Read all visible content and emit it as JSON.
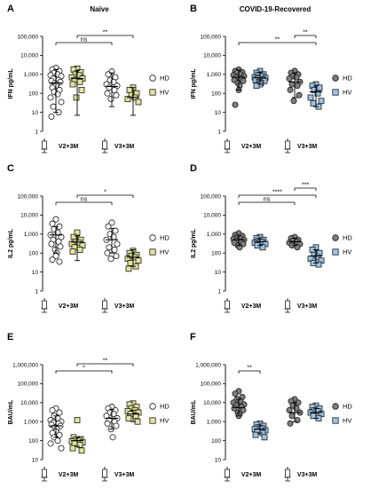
{
  "column_titles": {
    "left": "Naïve",
    "right": "COVID-19-Recovered"
  },
  "legend": {
    "hd": "HD",
    "hv": "HV"
  },
  "colors": {
    "naive_hd_fill": "#ffffff",
    "naive_hv_fill": "#e3e49a",
    "rec_hd_fill": "#7f7f7f",
    "rec_hv_fill": "#9cc3e6",
    "stroke": "#1a1a1a"
  },
  "icon_names": [
    "syringe-icon"
  ],
  "chart_data": [
    {
      "panel": "A",
      "type": "scatter",
      "xlabel": "",
      "ylabel": "IFN pg/mL",
      "log_y": true,
      "ylim": [
        1,
        100000
      ],
      "tick_labels": [
        "1",
        "10",
        "100",
        "1,000",
        "10,000",
        "100,000"
      ],
      "categories": [
        "V2+3M",
        "V3+3M"
      ],
      "series": [
        {
          "group": "HD",
          "fill_key": "naive_hd_fill",
          "shape": "circle",
          "values_by_category": [
            [
              2200,
              1800,
              1500,
              1200,
              1000,
              900,
              800,
              600,
              500,
              450,
              400,
              350,
              300,
              250,
              200,
              150,
              120,
              90,
              60,
              35,
              20,
              10,
              6
            ],
            [
              1400,
              1000,
              700,
              500,
              400,
              300,
              250,
              200,
              150,
              100,
              80,
              50
            ]
          ],
          "mean": [
            350,
            230
          ],
          "sd_low": [
            10,
            20
          ],
          "sd_high": [
            1800,
            1200
          ]
        },
        {
          "group": "HV",
          "fill_key": "naive_hv_fill",
          "shape": "square",
          "values_by_category": [
            [
              2000,
              1800,
              1300,
              1000,
              900,
              700,
              600,
              500,
              400,
              300,
              150,
              60
            ],
            [
              200,
              150,
              100,
              80,
              60,
              50,
              35
            ]
          ],
          "mean": [
            600,
            60
          ],
          "sd_low": [
            7,
            7
          ],
          "sd_high": [
            1600,
            200
          ]
        }
      ],
      "significance": [
        {
          "label": "ns",
          "from": "HD V2+3M",
          "to": "HD V3+3M"
        },
        {
          "label": "**",
          "from": "HV V2+3M",
          "to": "HV V3+3M"
        }
      ]
    },
    {
      "panel": "B",
      "type": "scatter",
      "xlabel": "",
      "ylabel": "IFN pg/mL",
      "log_y": true,
      "ylim": [
        1,
        100000
      ],
      "tick_labels": [
        "1",
        "10",
        "100",
        "1,000",
        "10,000",
        "100,000"
      ],
      "categories": [
        "V2+3M",
        "V3+3M"
      ],
      "series": [
        {
          "group": "HD",
          "fill_key": "rec_hd_fill",
          "shape": "circle",
          "values_by_category": [
            [
              1800,
              1500,
              1300,
              1200,
              1000,
              900,
              800,
              700,
              600,
              500,
              450,
              350,
              250,
              150,
              25
            ],
            [
              1500,
              1200,
              1000,
              800,
              700,
              600,
              400,
              300,
              250,
              150,
              80,
              40
            ]
          ],
          "mean": [
            700,
            400
          ],
          "sd_low": [
            150,
            60
          ],
          "sd_high": [
            1700,
            1200
          ]
        },
        {
          "group": "HV",
          "fill_key": "rec_hv_fill",
          "shape": "square",
          "values_by_category": [
            [
              1500,
              1200,
              1000,
              900,
              800,
              700,
              650,
              600,
              550,
              500,
              450,
              400,
              350,
              300,
              250
            ],
            [
              300,
              250,
              200,
              150,
              100,
              60,
              40,
              30,
              20
            ]
          ],
          "mean": [
            650,
            120
          ],
          "sd_low": [
            300,
            20
          ],
          "sd_high": [
            1300,
            250
          ]
        }
      ],
      "significance": [
        {
          "label": "**",
          "from": "HD V2+3M",
          "to": "HV V3+3M"
        },
        {
          "label": "**",
          "from": "HD V3+3M",
          "to": "HV V3+3M"
        }
      ]
    },
    {
      "panel": "C",
      "type": "scatter",
      "xlabel": "",
      "ylabel": "IL2 pg/mL",
      "log_y": true,
      "ylim": [
        1,
        100000
      ],
      "tick_labels": [
        "1",
        "10",
        "100",
        "1,000",
        "10,000",
        "100,000"
      ],
      "categories": [
        "V2+3M",
        "V3+3M"
      ],
      "series": [
        {
          "group": "HD",
          "fill_key": "naive_hd_fill",
          "shape": "circle",
          "values_by_category": [
            [
              6000,
              3500,
              2500,
              1800,
              1200,
              900,
              700,
              500,
              400,
              300,
              220,
              150,
              100,
              70,
              45,
              35
            ],
            [
              4000,
              2500,
              1500,
              1000,
              700,
              500,
              300,
              200,
              150,
              100,
              70,
              50
            ]
          ],
          "mean": [
            900,
            500
          ],
          "sd_low": [
            100,
            100
          ],
          "sd_high": [
            2500,
            2000
          ]
        },
        {
          "group": "HV",
          "fill_key": "naive_hv_fill",
          "shape": "square",
          "values_by_category": [
            [
              1200,
              700,
              500,
              400,
              350,
              300,
              250,
              200,
              150,
              120
            ],
            [
              130,
              100,
              80,
              70,
              60,
              50,
              40,
              30,
              20,
              15
            ]
          ],
          "mean": [
            380,
            60
          ],
          "sd_low": [
            40,
            20
          ],
          "sd_high": [
            800,
            150
          ]
        }
      ],
      "significance": [
        {
          "label": "ns",
          "from": "HD V2+3M",
          "to": "HD V3+3M"
        },
        {
          "label": "*",
          "from": "HV V2+3M",
          "to": "HV V3+3M"
        }
      ]
    },
    {
      "panel": "D",
      "type": "scatter",
      "xlabel": "",
      "ylabel": "IL2 pg/mL",
      "log_y": true,
      "ylim": [
        1,
        100000
      ],
      "tick_labels": [
        "1",
        "10",
        "100",
        "1,000",
        "10,000",
        "100,000"
      ],
      "categories": [
        "V2+3M",
        "V3+3M"
      ],
      "series": [
        {
          "group": "HD",
          "fill_key": "rec_hd_fill",
          "shape": "circle",
          "values_by_category": [
            [
              1100,
              900,
              800,
              700,
              600,
              550,
              500,
              450,
              400,
              350,
              300,
              250,
              200
            ],
            [
              700,
              600,
              500,
              450,
              400,
              350,
              300,
              250,
              200
            ]
          ],
          "mean": [
            500,
            400
          ],
          "sd_low": [
            250,
            250
          ],
          "sd_high": [
            800,
            600
          ]
        },
        {
          "group": "HV",
          "fill_key": "rec_hv_fill",
          "shape": "square",
          "values_by_category": [
            [
              700,
              600,
              500,
              450,
              400,
              350,
              300,
              250,
              200
            ],
            [
              200,
              150,
              100,
              80,
              60,
              50,
              40,
              30,
              25
            ]
          ],
          "mean": [
            400,
            70
          ],
          "sd_low": [
            250,
            30
          ],
          "sd_high": [
            550,
            150
          ]
        }
      ],
      "significance": [
        {
          "label": "ns",
          "from": "HD V2+3M",
          "to": "HD V3+3M"
        },
        {
          "label": "****",
          "from": "HD V2+3M",
          "to": "HV V3+3M"
        },
        {
          "label": "***",
          "from": "HD V3+3M",
          "to": "HV V3+3M"
        }
      ]
    },
    {
      "panel": "E",
      "type": "scatter",
      "xlabel": "",
      "ylabel": "BAU/mL",
      "log_y": true,
      "ylim": [
        10,
        1000000
      ],
      "tick_labels": [
        "10",
        "100",
        "1,000",
        "10,000",
        "100,000",
        "1,000,000"
      ],
      "categories": [
        "V2+3M",
        "V3+3M"
      ],
      "series": [
        {
          "group": "HD",
          "fill_key": "naive_hd_fill",
          "shape": "circle",
          "values_by_category": [
            [
              5000,
              4000,
              3000,
              2000,
              1500,
              1200,
              1000,
              900,
              800,
              700,
              600,
              500,
              400,
              300,
              250,
              200,
              150,
              100,
              70,
              40
            ],
            [
              6000,
              5000,
              4000,
              3000,
              2500,
              2000,
              1500,
              1200,
              1000,
              800,
              600,
              400,
              150
            ]
          ],
          "mean": [
            600,
            1500
          ],
          "sd_low": [
            150,
            400
          ],
          "sd_high": [
            2000,
            4500
          ]
        },
        {
          "group": "HV",
          "fill_key": "naive_hv_fill",
          "shape": "square",
          "values_by_category": [
            [
              1200,
              150,
              120,
              110,
              100,
              90,
              80,
              70,
              60,
              40,
              30
            ],
            [
              9000,
              8000,
              6000,
              5000,
              4000,
              3500,
              3000,
              2500,
              2000,
              1500,
              1000
            ]
          ],
          "mean": [
            100,
            2500
          ],
          "sd_low": [
            50,
            1000
          ],
          "sd_high": [
            150,
            4000
          ]
        }
      ],
      "significance": [
        {
          "label": "*",
          "from": "HD V2+3M",
          "to": "HD V3+3M"
        },
        {
          "label": "**",
          "from": "HV V2+3M",
          "to": "HV V3+3M"
        }
      ]
    },
    {
      "panel": "F",
      "type": "scatter",
      "xlabel": "",
      "ylabel": "BAU/mL",
      "log_y": true,
      "ylim": [
        10,
        1000000
      ],
      "tick_labels": [
        "10",
        "100",
        "1,000",
        "10,000",
        "100,000",
        "1,000,000"
      ],
      "categories": [
        "V2+3M",
        "V3+3M"
      ],
      "series": [
        {
          "group": "HD",
          "fill_key": "rec_hd_fill",
          "shape": "circle",
          "values_by_category": [
            [
              40000,
              30000,
              20000,
              15000,
              12000,
              10000,
              8000,
              7000,
              6000,
              5000,
              4000,
              3000,
              2500,
              2000
            ],
            [
              15000,
              12000,
              10000,
              7000,
              5000,
              4000,
              3000,
              2000,
              1200,
              800
            ]
          ],
          "mean": [
            5500,
            3000
          ],
          "sd_low": [
            2000,
            1000
          ],
          "sd_high": [
            15000,
            10000
          ]
        },
        {
          "group": "HV",
          "fill_key": "rec_hv_fill",
          "shape": "square",
          "values_by_category": [
            [
              800,
              700,
              600,
              500,
              450,
              400,
              350,
              300,
              250,
              200,
              150
            ],
            [
              7000,
              6000,
              5000,
              4000,
              3500,
              3000,
              2500,
              2000,
              1500
            ]
          ],
          "mean": [
            400,
            3000
          ],
          "sd_low": [
            250,
            1500
          ],
          "sd_high": [
            600,
            5000
          ]
        }
      ],
      "significance": [
        {
          "label": "**",
          "from": "HD V2+3M",
          "to": "HV V2+3M"
        }
      ]
    }
  ]
}
